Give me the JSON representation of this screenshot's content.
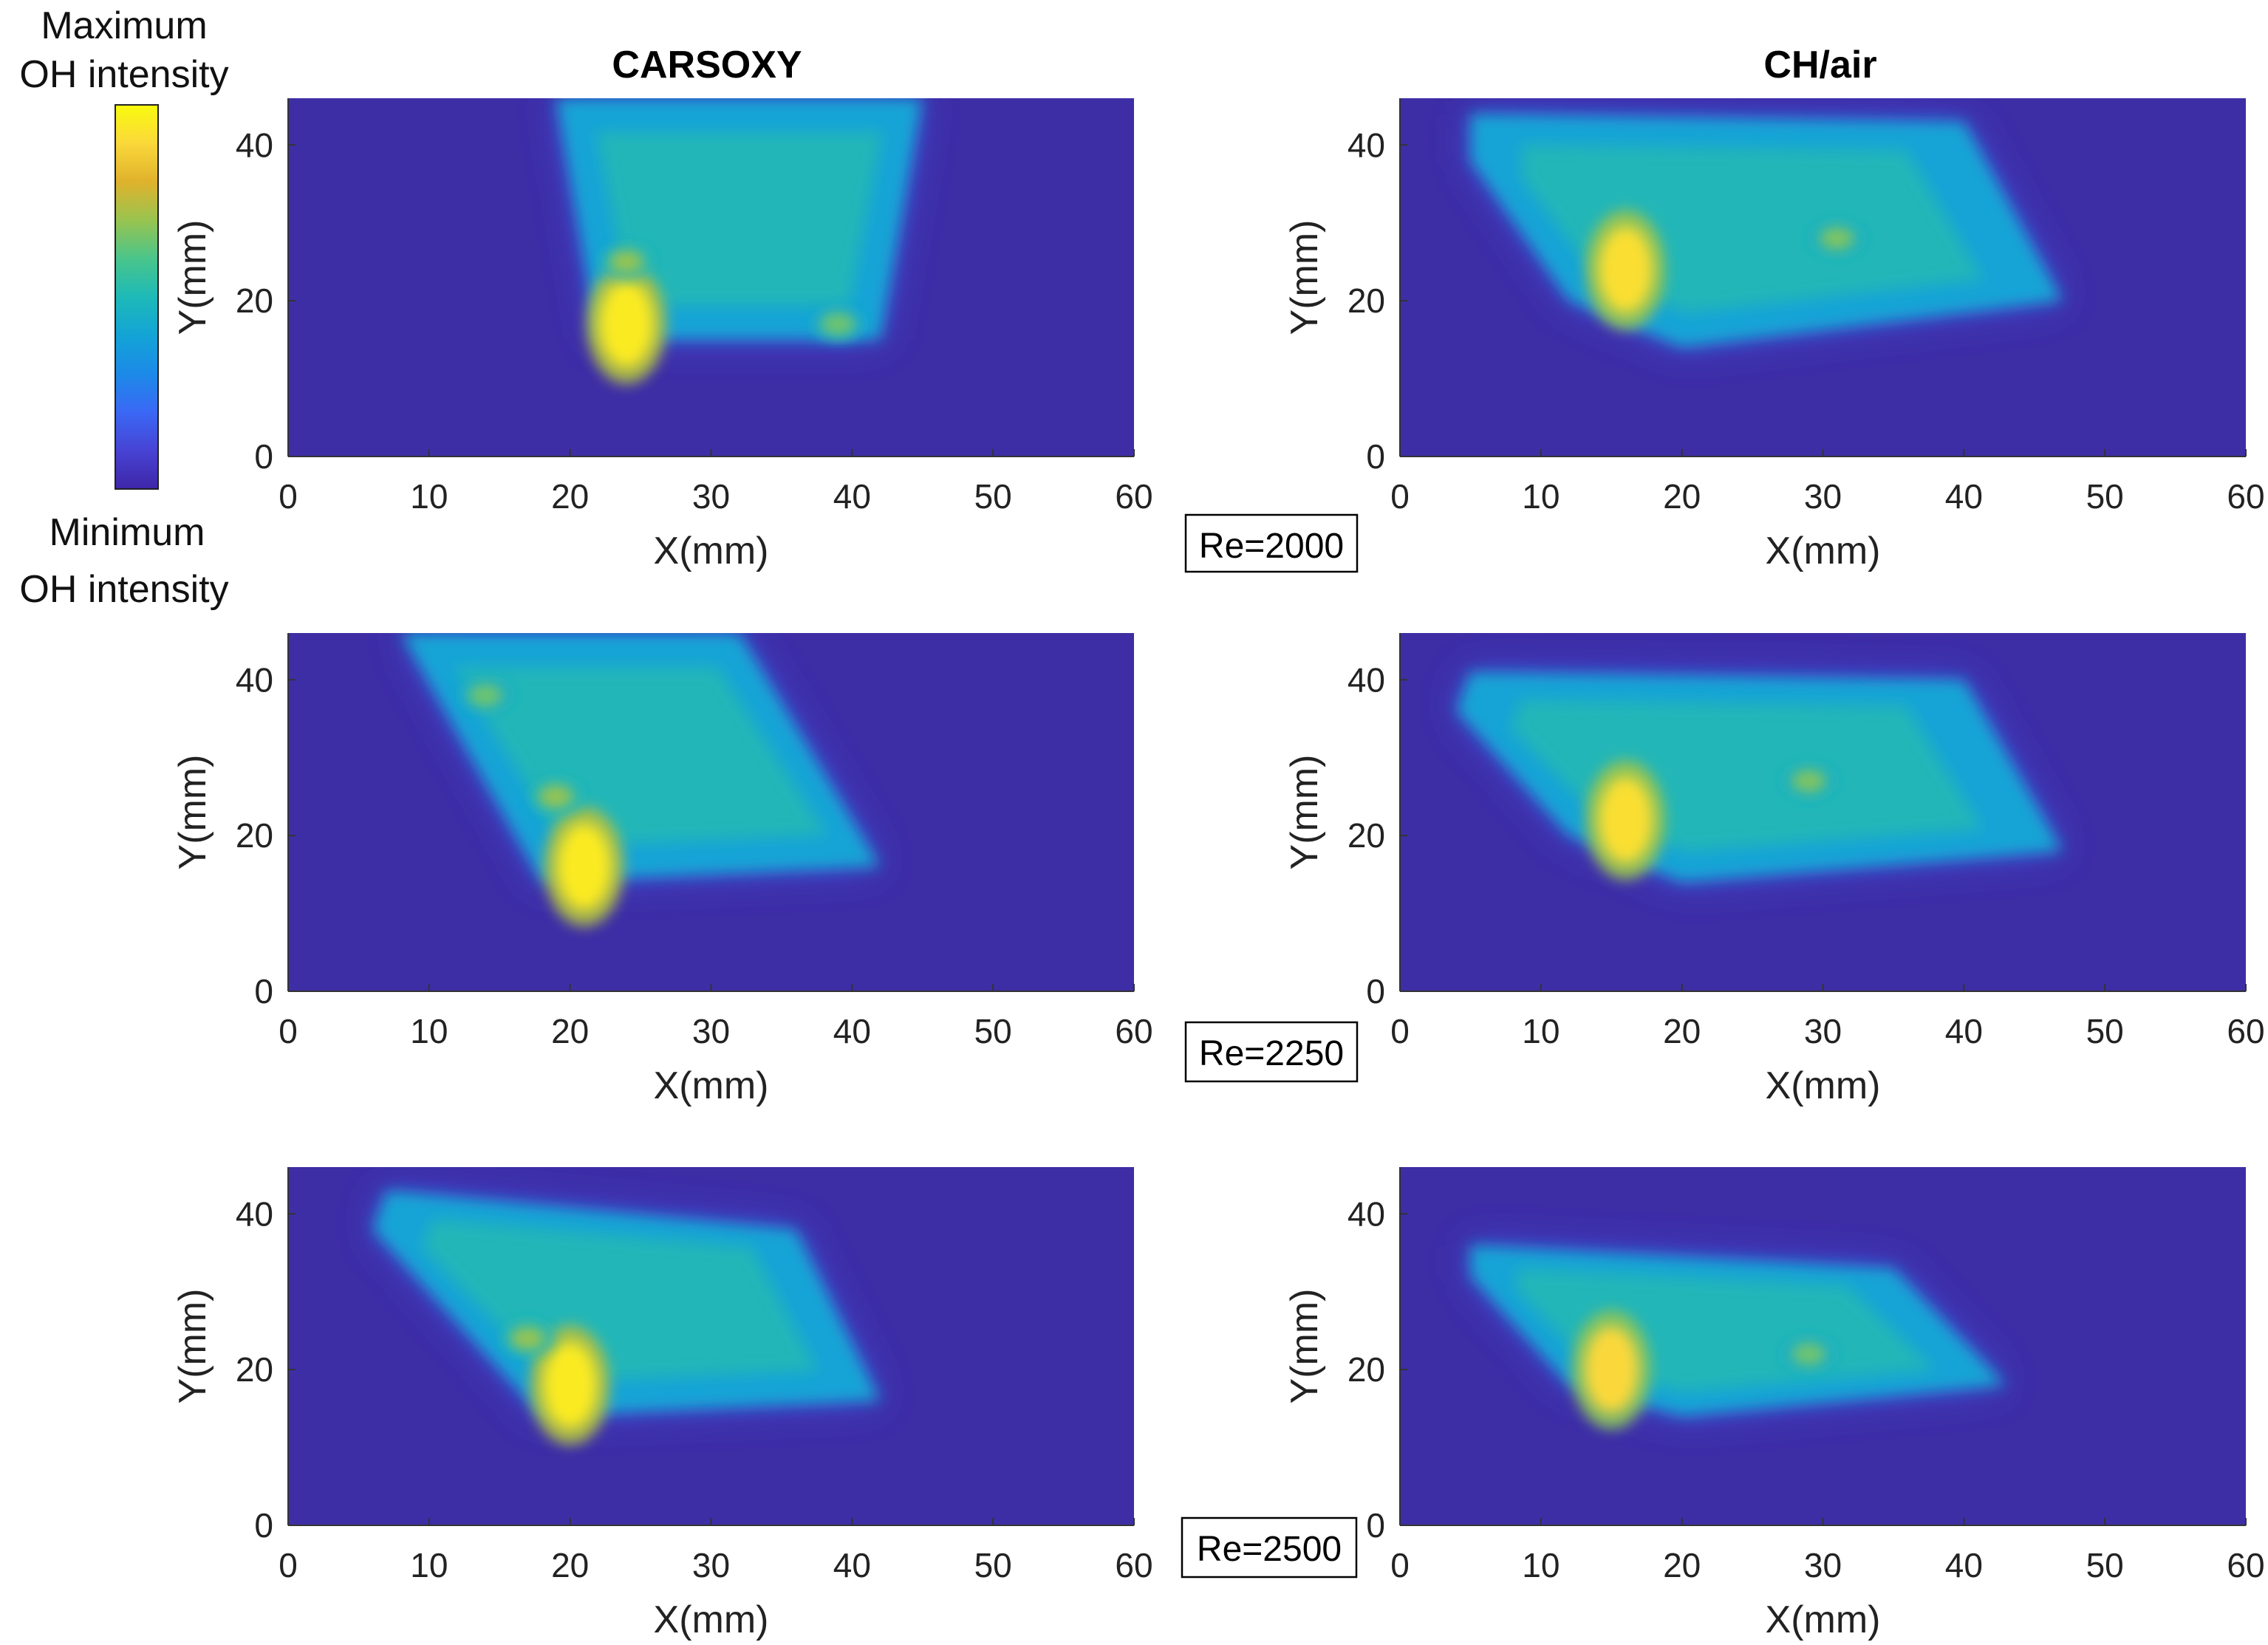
{
  "figure": {
    "colorbar": {
      "max_label_lines": [
        "Maximum",
        "OH intensity"
      ],
      "min_label_lines": [
        "Minimum",
        "OH intensity"
      ],
      "colormap": "parula",
      "colors": [
        "#3e26a8",
        "#4743d4",
        "#3a68f5",
        "#1c8ae8",
        "#13a4d6",
        "#1dbab8",
        "#4ac58b",
        "#99c44f",
        "#e0b22c",
        "#fad83a",
        "#f9fb0e"
      ]
    },
    "column_titles": [
      "CARSOXY",
      "CH/air"
    ],
    "reynolds_labels": [
      "Re=2000",
      "Re=2250",
      "Re=2500"
    ],
    "background_color": "#3d2ea6"
  },
  "chart_data": [
    {
      "type": "heatmap",
      "column": "CARSOXY",
      "row_label": "Re=2000",
      "xlabel": "X(mm)",
      "ylabel": "Y(mm)",
      "xlim": [
        0,
        60
      ],
      "ylim": [
        0,
        46
      ],
      "xticks": [
        0,
        10,
        20,
        30,
        40,
        50,
        60
      ],
      "yticks": [
        0,
        20,
        40
      ],
      "flame_outline": [
        [
          19,
          46
        ],
        [
          45,
          46
        ],
        [
          42,
          15
        ],
        [
          22,
          15
        ]
      ],
      "hot_spots": [
        [
          24,
          17
        ],
        [
          24,
          25
        ],
        [
          39,
          17
        ]
      ],
      "peak_intensity": 0.95
    },
    {
      "type": "heatmap",
      "column": "CH/air",
      "row_label": "Re=2000",
      "xlabel": "X(mm)",
      "ylabel": "Y(mm)",
      "xlim": [
        0,
        60
      ],
      "ylim": [
        0,
        46
      ],
      "xticks": [
        0,
        10,
        20,
        30,
        40,
        50,
        60
      ],
      "yticks": [
        0,
        20,
        40
      ],
      "flame_outline": [
        [
          5,
          44
        ],
        [
          40,
          43
        ],
        [
          47,
          20
        ],
        [
          20,
          14
        ],
        [
          12,
          20
        ],
        [
          5,
          38
        ]
      ],
      "hot_spots": [
        [
          16,
          24
        ],
        [
          31,
          28
        ]
      ],
      "peak_intensity": 0.92
    },
    {
      "type": "heatmap",
      "column": "CARSOXY",
      "row_label": "Re=2250",
      "xlabel": "X(mm)",
      "ylabel": "Y(mm)",
      "xlim": [
        0,
        60
      ],
      "ylim": [
        0,
        46
      ],
      "xticks": [
        0,
        10,
        20,
        30,
        40,
        50,
        60
      ],
      "yticks": [
        0,
        20,
        40
      ],
      "flame_outline": [
        [
          8,
          46
        ],
        [
          32,
          46
        ],
        [
          42,
          16
        ],
        [
          18,
          14
        ]
      ],
      "hot_spots": [
        [
          21,
          16
        ],
        [
          19,
          25
        ],
        [
          14,
          38
        ]
      ],
      "peak_intensity": 0.95
    },
    {
      "type": "heatmap",
      "column": "CH/air",
      "row_label": "Re=2250",
      "xlabel": "X(mm)",
      "ylabel": "Y(mm)",
      "xlim": [
        0,
        60
      ],
      "ylim": [
        0,
        46
      ],
      "xticks": [
        0,
        10,
        20,
        30,
        40,
        50,
        60
      ],
      "yticks": [
        0,
        20,
        40
      ],
      "flame_outline": [
        [
          5,
          41
        ],
        [
          40,
          40
        ],
        [
          47,
          18
        ],
        [
          20,
          14
        ],
        [
          12,
          20
        ],
        [
          4,
          36
        ]
      ],
      "hot_spots": [
        [
          16,
          22
        ],
        [
          29,
          27
        ]
      ],
      "peak_intensity": 0.92
    },
    {
      "type": "heatmap",
      "column": "CARSOXY",
      "row_label": "Re=2500",
      "xlabel": "X(mm)",
      "ylabel": "Y(mm)",
      "xlim": [
        0,
        60
      ],
      "ylim": [
        0,
        46
      ],
      "xticks": [
        0,
        10,
        20,
        30,
        40,
        50,
        60
      ],
      "yticks": [
        0,
        20,
        40
      ],
      "flame_outline": [
        [
          7,
          43
        ],
        [
          36,
          38
        ],
        [
          42,
          16
        ],
        [
          18,
          14
        ],
        [
          6,
          38
        ]
      ],
      "hot_spots": [
        [
          20,
          18
        ],
        [
          17,
          24
        ]
      ],
      "peak_intensity": 0.95
    },
    {
      "type": "heatmap",
      "column": "CH/air",
      "row_label": "Re=2500",
      "xlabel": "X(mm)",
      "ylabel": "Y(mm)",
      "xlim": [
        0,
        60
      ],
      "ylim": [
        0,
        46
      ],
      "xticks": [
        0,
        10,
        20,
        30,
        40,
        50,
        60
      ],
      "yticks": [
        0,
        20,
        40
      ],
      "flame_outline": [
        [
          5,
          36
        ],
        [
          35,
          33
        ],
        [
          43,
          18
        ],
        [
          20,
          14
        ],
        [
          12,
          18
        ],
        [
          5,
          32
        ]
      ],
      "hot_spots": [
        [
          15,
          20
        ],
        [
          29,
          22
        ]
      ],
      "peak_intensity": 0.9
    }
  ]
}
